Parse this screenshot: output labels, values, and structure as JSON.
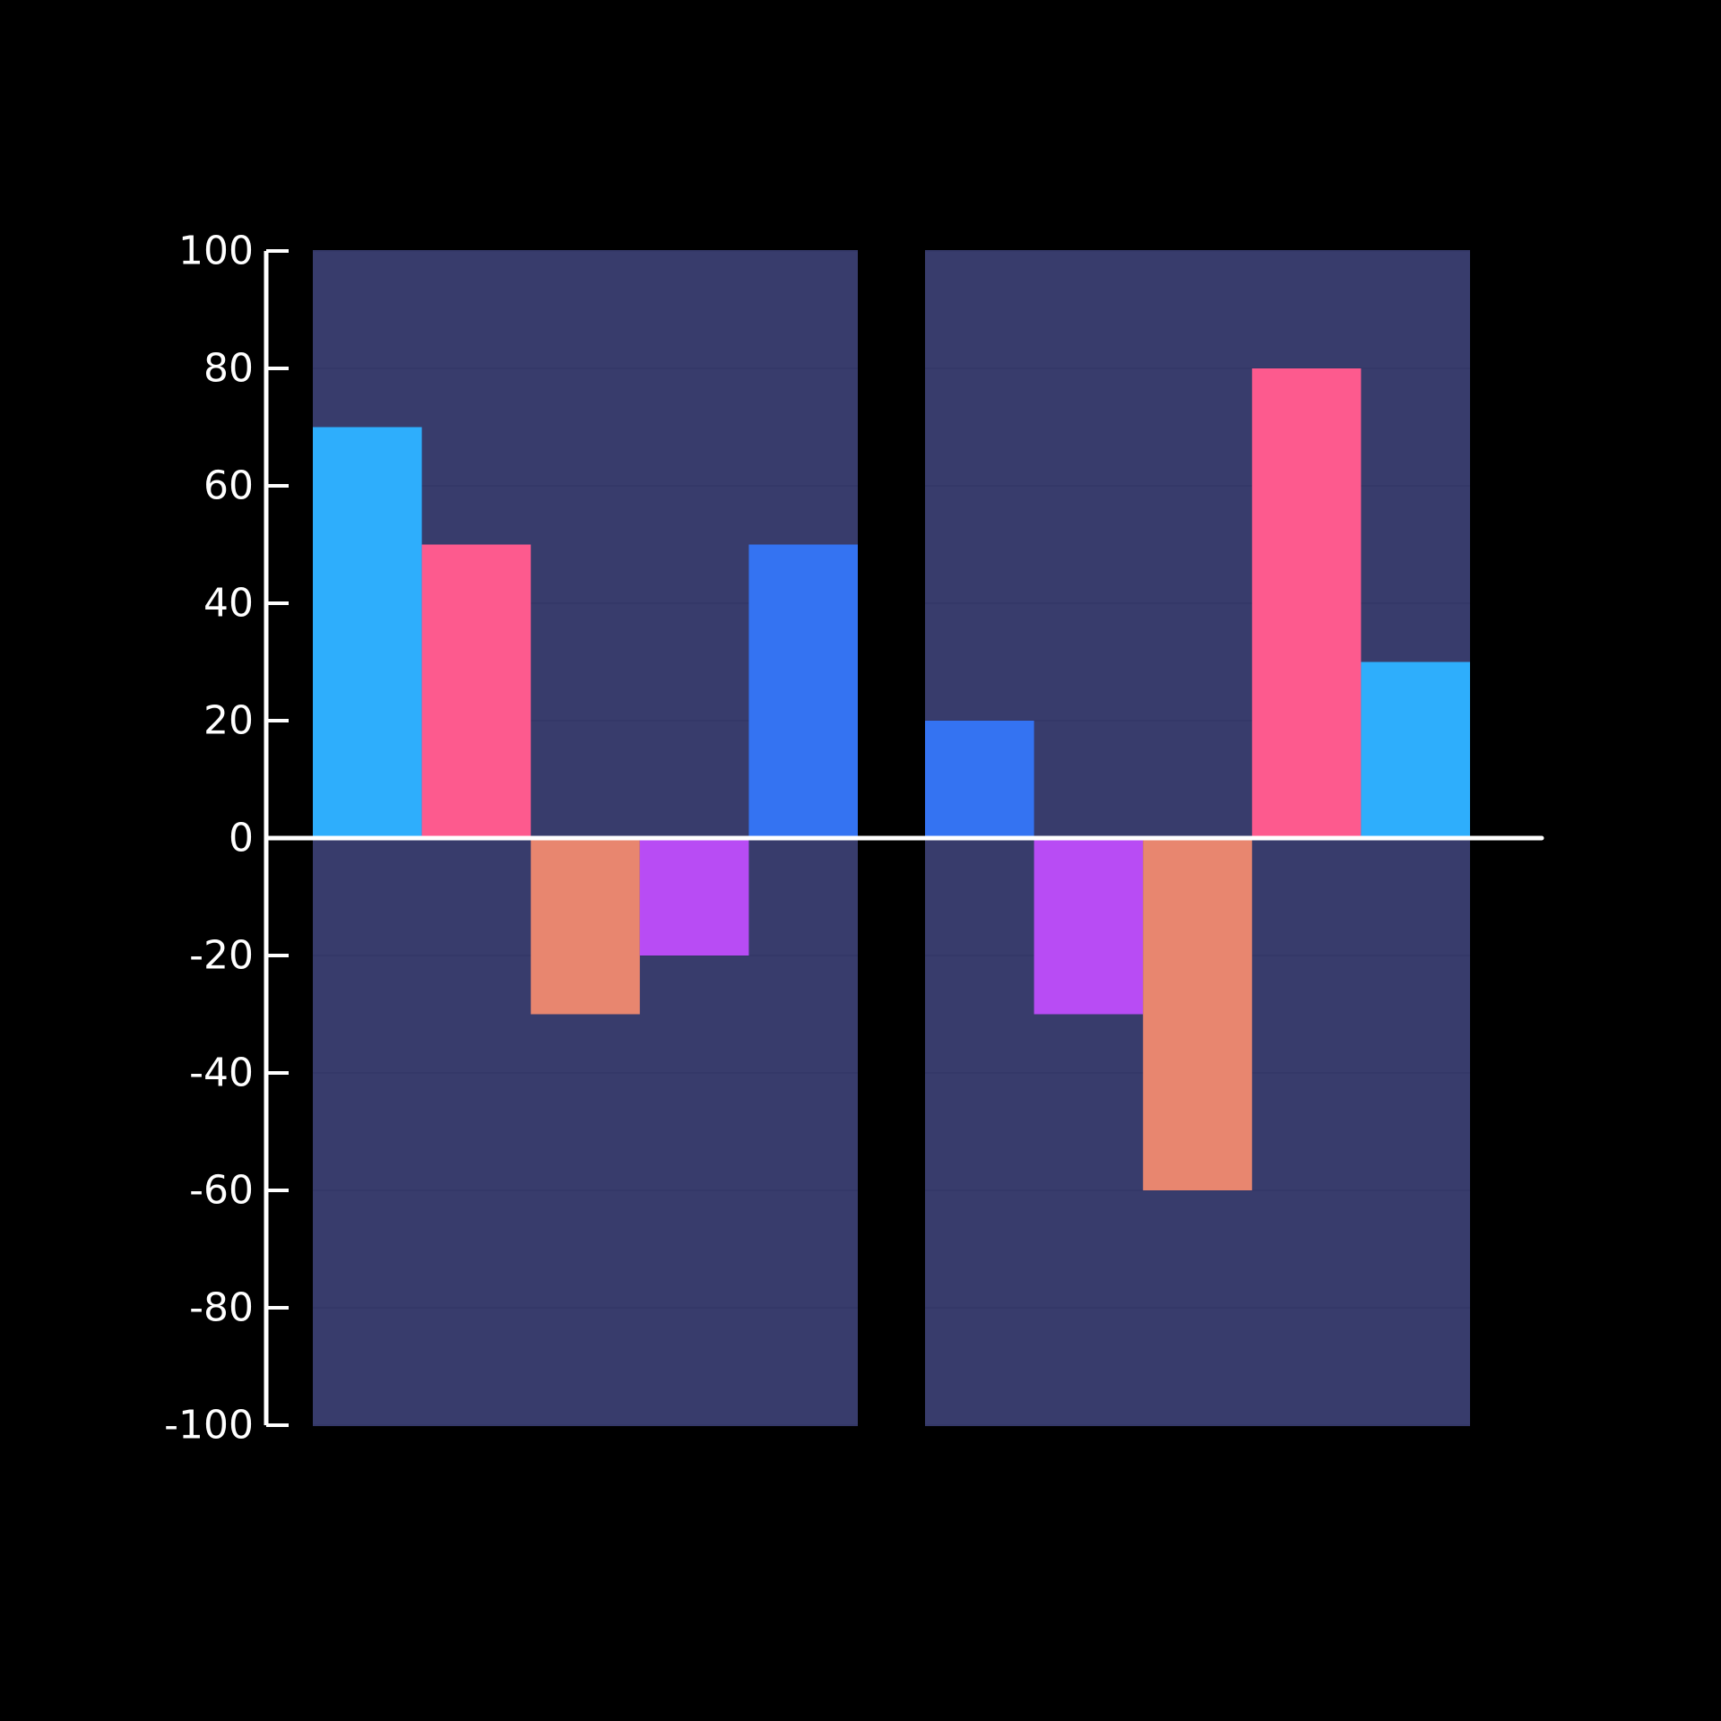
{
  "chart_data": {
    "type": "bar",
    "groups": [
      {
        "values": [
          70,
          50,
          -30,
          -20,
          50
        ],
        "colors": [
          "#2eaefc",
          "#fd5a8e",
          "#e8866f",
          "#b84cf4",
          "#3473f2"
        ]
      },
      {
        "values": [
          20,
          -30,
          -60,
          80,
          30
        ],
        "colors": [
          "#3473f2",
          "#b84cf4",
          "#e8866f",
          "#fd5a8e",
          "#2eaefc"
        ]
      }
    ],
    "yticks": [
      {
        "value": 100,
        "label": "100"
      },
      {
        "value": 80,
        "label": "80"
      },
      {
        "value": 60,
        "label": "60"
      },
      {
        "value": 40,
        "label": "40"
      },
      {
        "value": 20,
        "label": "20"
      },
      {
        "value": 0,
        "label": "0"
      },
      {
        "value": -20,
        "label": "-20"
      },
      {
        "value": -40,
        "label": "-40"
      },
      {
        "value": -60,
        "label": "-60"
      },
      {
        "value": -80,
        "label": "-80"
      },
      {
        "value": -100,
        "label": "-100"
      }
    ],
    "ylim": [
      -100,
      100
    ],
    "grid": true,
    "legend": "none",
    "title": "",
    "xlabel": "",
    "ylabel": "",
    "colors": {
      "background": "#000000",
      "panel": "#383c6c",
      "gridline": "#343868",
      "axis": "#ffffff"
    }
  }
}
